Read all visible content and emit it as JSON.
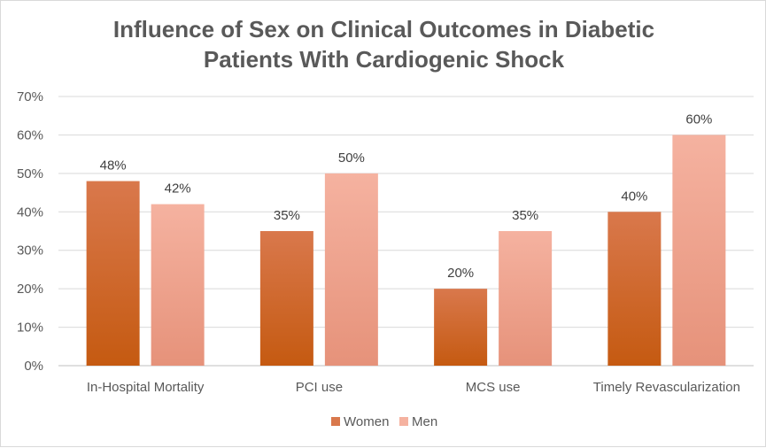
{
  "chart_data": {
    "type": "bar",
    "title_lines": [
      "Influence of Sex on Clinical Outcomes in Diabetic",
      "Patients With Cardiogenic Shock"
    ],
    "categories": [
      "In-Hospital Mortality",
      "PCI use",
      "MCS use",
      "Timely Revascularization"
    ],
    "series": [
      {
        "name": "Women",
        "values": [
          48,
          35,
          20,
          40
        ],
        "color_top": "#D9784C",
        "color_bottom": "#C55A11"
      },
      {
        "name": "Men",
        "values": [
          42,
          50,
          35,
          60
        ],
        "color_top": "#F5B2A0",
        "color_bottom": "#E6927A"
      }
    ],
    "ylim": [
      0,
      70
    ],
    "yticks": [
      0,
      10,
      20,
      30,
      40,
      50,
      60,
      70
    ],
    "y_format": "percent",
    "gridlines": true,
    "legend_position": "bottom",
    "xlabel": "",
    "ylabel": ""
  }
}
